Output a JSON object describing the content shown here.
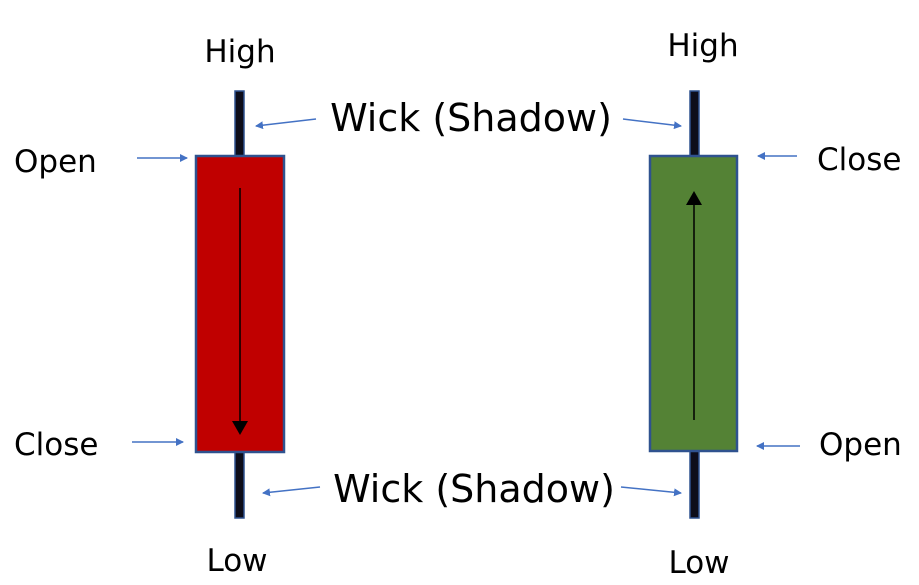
{
  "labels": {
    "bear_high": "High",
    "bear_open": "Open",
    "bear_close": "Close",
    "bear_low": "Low",
    "bull_high": "High",
    "bull_close": "Close",
    "bull_open": "Open",
    "bull_low": "Low",
    "wick_top": "Wick (Shadow)",
    "wick_bottom": "Wick (Shadow)"
  },
  "colors": {
    "bearish_body": "#c00000",
    "bullish_body": "#548235",
    "body_border": "#2f528f",
    "wick": "#0d0d1a",
    "pointer_arrow": "#4472c4",
    "direction_arrow": "#000000"
  },
  "candles": [
    {
      "direction": "down",
      "body_color_key": "bearish_body"
    },
    {
      "direction": "up",
      "body_color_key": "bullish_body"
    }
  ]
}
